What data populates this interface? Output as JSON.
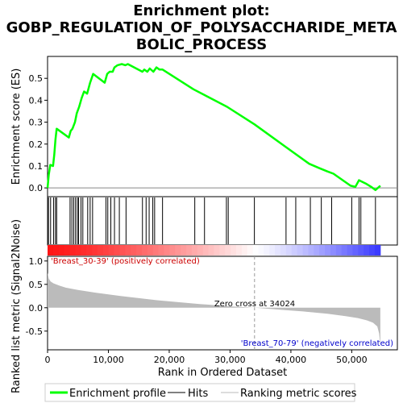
{
  "chart_data": {
    "type": "line",
    "title_lines": [
      "Enrichment plot:",
      "GOBP_REGULATION_OF_POLYSACCHARIDE_META",
      "BOLIC_PROCESS"
    ],
    "top_panel": {
      "ylabel": "Enrichment score (ES)",
      "ylim": [
        -0.04,
        0.6
      ],
      "yticks": [
        "0.0",
        "0.1",
        "0.2",
        "0.3",
        "0.4",
        "0.5"
      ],
      "ytick_values": [
        0.0,
        0.1,
        0.2,
        0.3,
        0.4,
        0.5
      ],
      "series": [
        {
          "name": "Enrichment profile",
          "color": "#00ff00",
          "x": [
            0,
            200,
            450,
            900,
            1100,
            1300,
            1500,
            3500,
            3800,
            4100,
            4500,
            4800,
            5200,
            5600,
            6000,
            6500,
            7000,
            7500,
            9400,
            9800,
            10200,
            10700,
            11000,
            11500,
            12200,
            12800,
            13200,
            15600,
            15900,
            16400,
            16800,
            17400,
            17900,
            18400,
            18900,
            24000,
            29500,
            34024,
            39000,
            43000,
            44700,
            46000,
            47000,
            49800,
            50600,
            51200,
            52300,
            53200,
            53900,
            54700
          ],
          "y": [
            0.0,
            0.06,
            0.105,
            0.1,
            0.15,
            0.22,
            0.27,
            0.23,
            0.26,
            0.27,
            0.3,
            0.34,
            0.37,
            0.41,
            0.44,
            0.43,
            0.48,
            0.52,
            0.48,
            0.52,
            0.53,
            0.53,
            0.55,
            0.56,
            0.565,
            0.56,
            0.565,
            0.53,
            0.54,
            0.53,
            0.545,
            0.53,
            0.55,
            0.54,
            0.54,
            0.45,
            0.37,
            0.29,
            0.19,
            0.11,
            0.09,
            0.075,
            0.065,
            0.01,
            0.005,
            0.035,
            0.02,
            0.005,
            -0.01,
            0.01
          ]
        }
      ],
      "hits": [
        150,
        500,
        1000,
        1300,
        1500,
        3700,
        4000,
        4300,
        4600,
        4900,
        5100,
        5500,
        5800,
        6600,
        7000,
        7400,
        9600,
        9900,
        10400,
        11000,
        11800,
        12900,
        15600,
        16200,
        16700,
        17300,
        17600,
        18900,
        24200,
        25800,
        29400,
        29700,
        34000,
        39200,
        40800,
        43200,
        45000,
        46700,
        50000,
        51200,
        51500,
        53900
      ]
    },
    "bottom_panel": {
      "ylabel": "Ranked list metric (Signal2Noise)",
      "xlabel": "Rank in Ordered Dataset",
      "ylim": [
        -0.9,
        1.1
      ],
      "yticks": [
        "-0.5",
        "0.0",
        "0.5",
        "1.0"
      ],
      "ytick_values": [
        -0.5,
        0.0,
        0.5,
        1.0
      ],
      "xlim": [
        0,
        57500
      ],
      "xticks": [
        "0",
        "10,000",
        "20,000",
        "30,000",
        "40,000",
        "50,000"
      ],
      "xtick_values": [
        0,
        10000,
        20000,
        30000,
        40000,
        50000
      ],
      "metric_x": [
        0,
        200,
        500,
        1000,
        2000,
        3000,
        5000,
        8000,
        12000,
        18000,
        25000,
        30000,
        34024,
        38000,
        42000,
        46000,
        49000,
        51000,
        52500,
        53500,
        54200,
        54500,
        54700
      ],
      "metric_y": [
        0.75,
        0.62,
        0.56,
        0.52,
        0.47,
        0.43,
        0.38,
        0.32,
        0.25,
        0.16,
        0.08,
        0.03,
        0.0,
        -0.04,
        -0.08,
        -0.13,
        -0.18,
        -0.22,
        -0.27,
        -0.32,
        -0.4,
        -0.55,
        -0.8
      ],
      "zero_cross_label": "Zero cross at 34024",
      "zero_cross_x": 34024,
      "pos_label": "'Breast_30-39' (positively correlated)",
      "neg_label": "'Breast_70-79' (negatively correlated)",
      "pos_color": "#cc0000",
      "neg_color": "#0000cc"
    },
    "legend": {
      "position": "bottom",
      "items": [
        {
          "label": "Enrichment profile",
          "color": "#00ff00",
          "style": "thick-line"
        },
        {
          "label": "Hits",
          "color": "#000000",
          "style": "thin-line"
        },
        {
          "label": "Ranking metric scores",
          "color": "#bbbbbb",
          "style": "thin-line"
        }
      ]
    }
  }
}
